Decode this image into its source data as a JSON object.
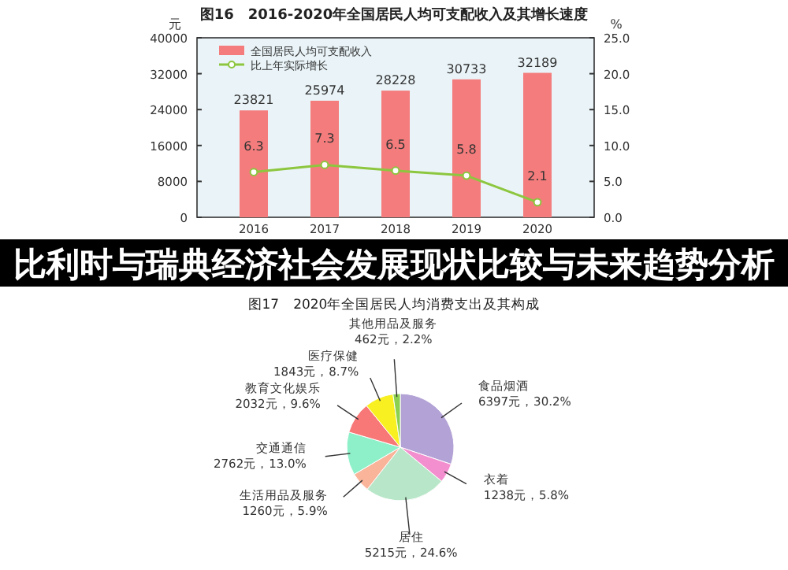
{
  "chart_data": [
    {
      "type": "bar",
      "title": "图16　2016-2020年全国居民人均可支配收入及其增长速度",
      "ylabel": "元",
      "y2label": "%",
      "categories": [
        "2016",
        "2017",
        "2018",
        "2019",
        "2020"
      ],
      "series": [
        {
          "name": "全国居民人均可支配收入",
          "type": "bar",
          "color": "#f47c7c",
          "values": [
            23821,
            25974,
            28228,
            30733,
            32189
          ]
        },
        {
          "name": "比上年实际增长",
          "type": "line",
          "axis": "y2",
          "color": "#8dc63f",
          "marker": "circle",
          "values": [
            6.3,
            7.3,
            6.5,
            5.8,
            2.1
          ]
        }
      ],
      "ylim": [
        0,
        40000
      ],
      "yticks": [
        0,
        8000,
        16000,
        24000,
        32000,
        40000
      ],
      "y2lim": [
        0,
        25
      ],
      "y2ticks": [
        {
          "value": 0,
          "label": "0.0"
        },
        {
          "value": 5,
          "label": "5.0"
        },
        {
          "value": 10,
          "label": "10.0"
        },
        {
          "value": 15,
          "label": "15.0"
        },
        {
          "value": 20,
          "label": "20.0"
        },
        {
          "value": 25,
          "label": "25.0"
        }
      ],
      "data_labels": true,
      "legend": "top left",
      "annotations": [
        "比利时与瑞典经济社会发展现状比较与未来趋势分析"
      ]
    },
    {
      "type": "pie",
      "title": "图17　2020年全国居民人均消费支出及其构成",
      "categories": [
        "食品烟酒",
        "衣着",
        "居住",
        "生活用品及服务",
        "交通通信",
        "教育文化娱乐",
        "医疗保健",
        "其他用品及服务"
      ],
      "values": [
        6397,
        1238,
        5215,
        1260,
        2762,
        2032,
        1843,
        462
      ],
      "value_labels": [
        "6397元，30.2%",
        "1238元，5.8%",
        "5215元，24.6%",
        "1260元，5.9%",
        "2762元，13.0%",
        "2032元，9.6%",
        "1843元，8.7%",
        "462元，2.2%"
      ],
      "colors": [
        "#b3a2d6",
        "#f48fcf",
        "#b8e6c8",
        "#f9b49a",
        "#8ef0c8",
        "#f87878",
        "#f8f020",
        "#8cd050"
      ]
    }
  ]
}
